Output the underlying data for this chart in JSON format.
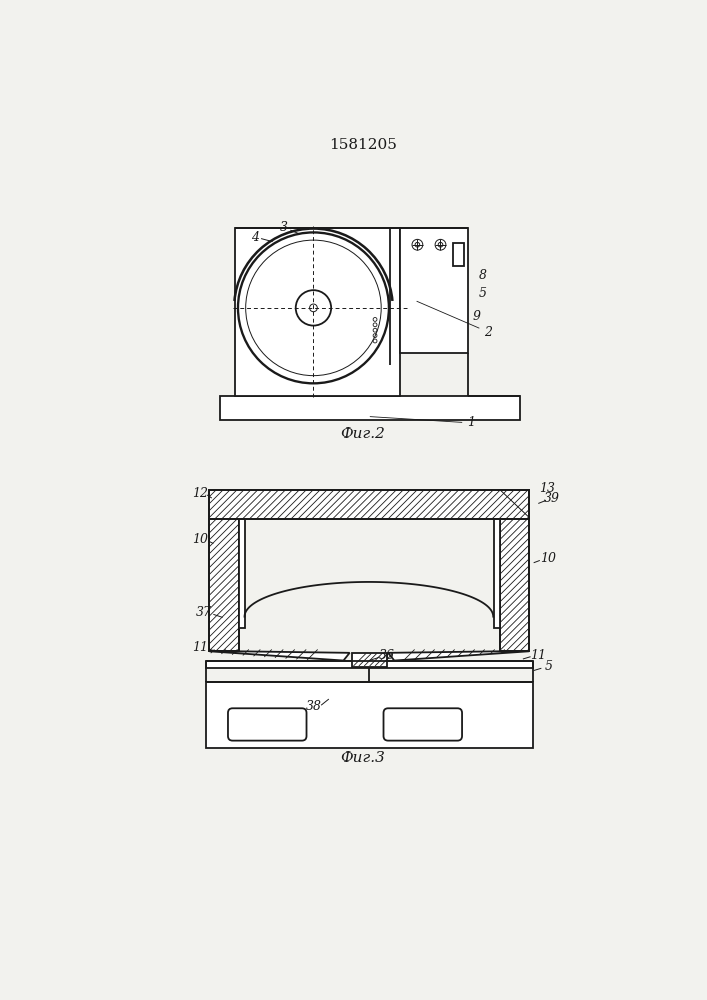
{
  "title": "1581205",
  "fig2_caption": "Фиг.2",
  "fig3_caption": "Фиг.3",
  "line_color": "#1a1a1a",
  "bg_color": "#f2f2ee",
  "lw": 1.3,
  "tlw": 0.7
}
